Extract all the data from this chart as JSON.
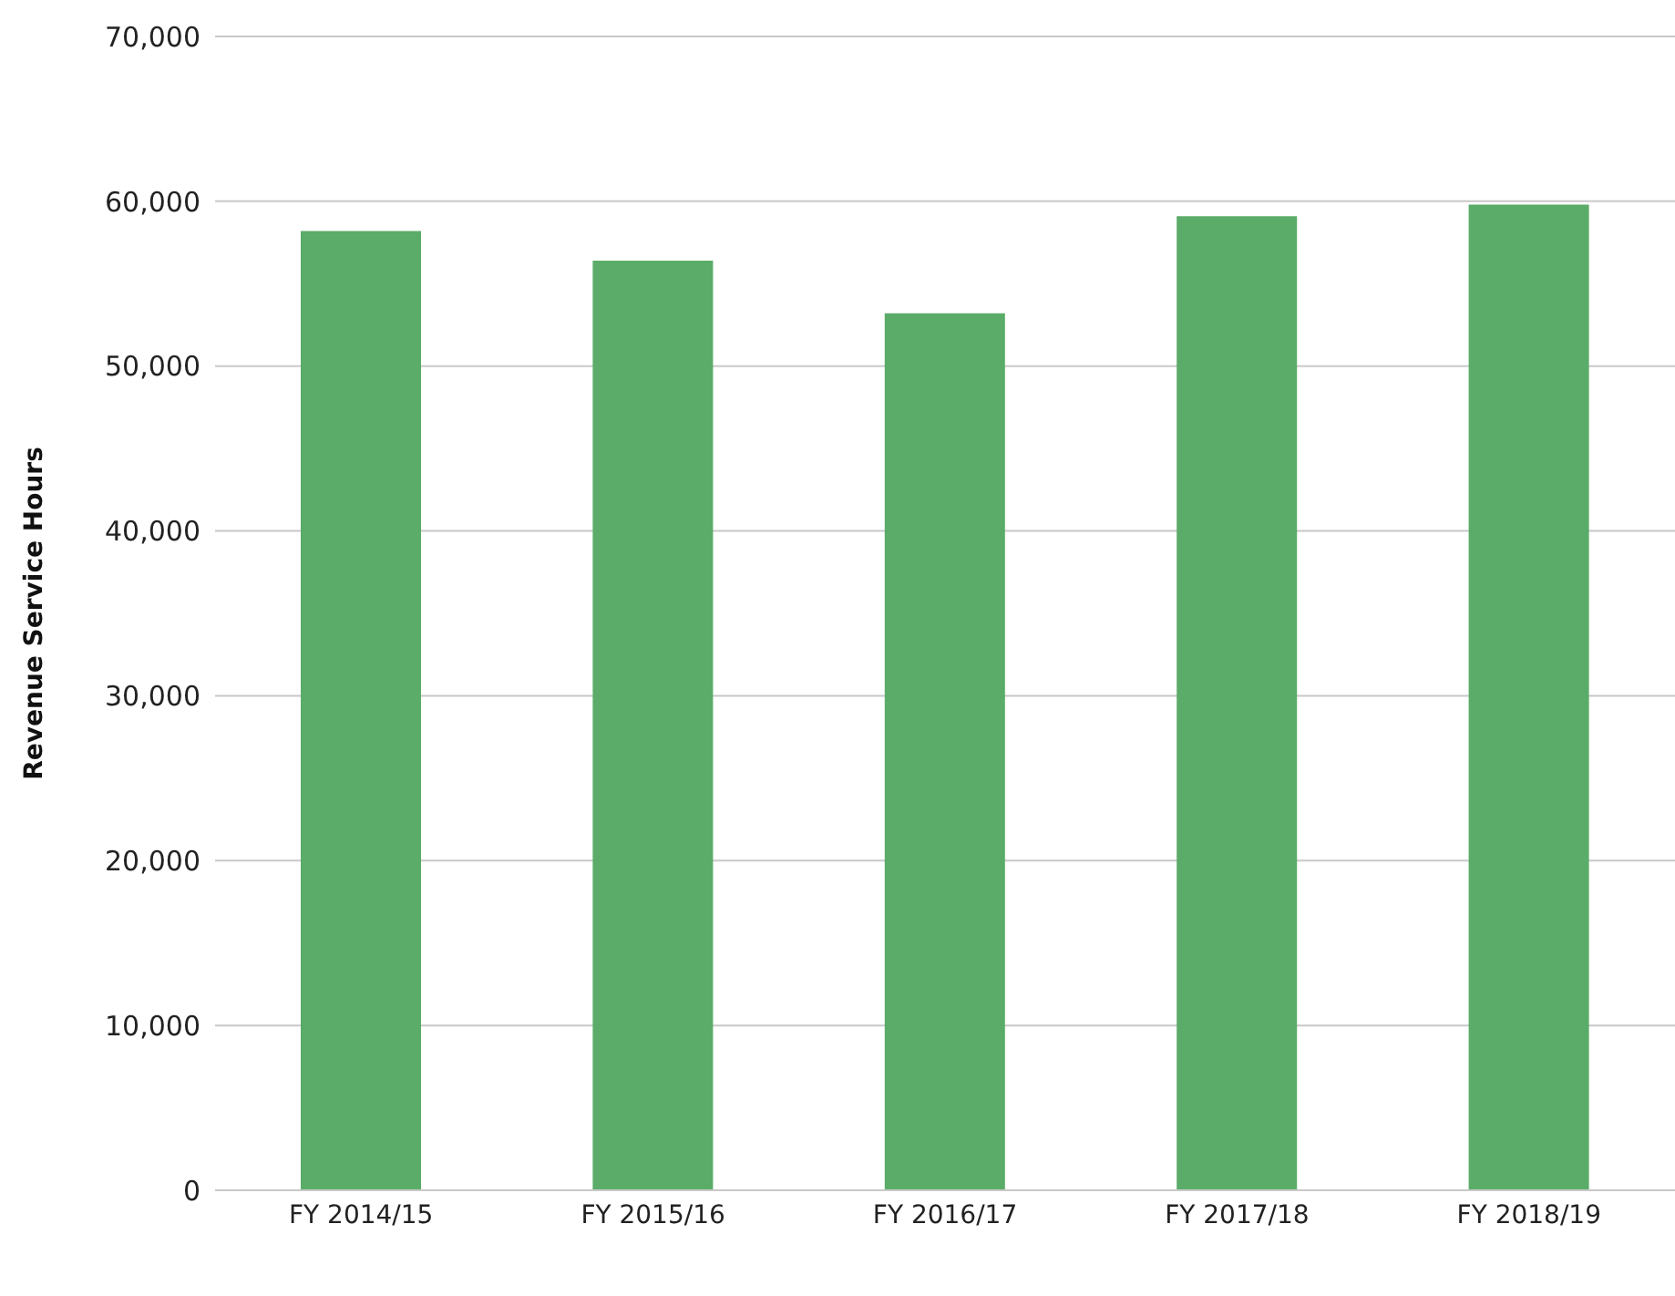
{
  "chart_data": {
    "type": "bar",
    "ylabel": "Revenue Service Hours",
    "categories": [
      "FY 2014/15",
      "FY 2015/16",
      "FY 2016/17",
      "FY 2017/18",
      "FY 2018/19"
    ],
    "values": [
      58200,
      56400,
      53200,
      59100,
      59800
    ],
    "color": "#5aac68",
    "ylim": [
      0,
      70000
    ],
    "yticks": [
      0,
      {
        "value": 10000,
        "label": "10,000"
      },
      {
        "value": 20000,
        "label": "20,000"
      },
      {
        "value": 30000,
        "label": "30,000"
      },
      {
        "value": 40000,
        "label": "40,000"
      },
      {
        "value": 50000,
        "label": "50,000"
      },
      {
        "value": 60000,
        "label": "60,000"
      },
      {
        "value": 70000,
        "label": "70,000"
      }
    ],
    "grid": "y",
    "legend": false
  }
}
